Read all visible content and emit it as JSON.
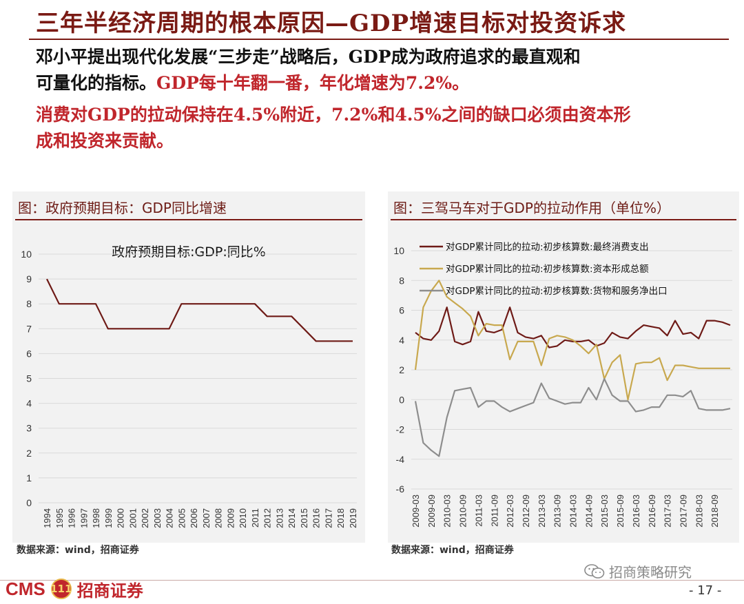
{
  "title": "三年半经济周期的根本原因—GDP增速目标对投资诉求",
  "intro": {
    "line1": "邓小平提出现代化发展“三步走”战略后，GDP成为政府追求的最直观和",
    "line2_black": "可量化的指标。",
    "line2_red": "GDP每十年翻一番，年化增速为7.2%。",
    "line3": "消费对GDP的拉动保持在4.5%附近，7.2%和4.5%之间的缺口必须由资本形",
    "line4": "成和投资来贡献。"
  },
  "left_panel": {
    "title": "图：政府预期目标：GDP同比增速",
    "source": "数据来源：wind，招商证券"
  },
  "right_panel": {
    "title": "图：三驾马车对于GDP的拉动作用（单位%）",
    "source": "数据来源：wind，招商证券"
  },
  "footer": {
    "logo_text": "CMS",
    "logo_badge": "111",
    "logo_name": "招商证券",
    "watermark": "招商策略研究",
    "page": "- 17 -"
  },
  "chart_data": [
    {
      "type": "line",
      "title": "政府预期目标:GDP:同比%",
      "ylim": [
        0,
        10
      ],
      "yticks": [
        0,
        1,
        2,
        3,
        4,
        5,
        6,
        7,
        8,
        9,
        10
      ],
      "x": [
        "1994",
        "1995",
        "1996",
        "1997",
        "1998",
        "1999",
        "2000",
        "2001",
        "2002",
        "2003",
        "2004",
        "2005",
        "2006",
        "2007",
        "2008",
        "2009",
        "2010",
        "2011",
        "2012",
        "2013",
        "2014",
        "2015",
        "2016",
        "2017",
        "2018",
        "2019"
      ],
      "series": [
        {
          "name": "政府预期目标:GDP:同比%",
          "color": "#6e1a16",
          "values": [
            9,
            8,
            8,
            8,
            8,
            7,
            7,
            7,
            7,
            7,
            7,
            8,
            8,
            8,
            8,
            8,
            8,
            8,
            7.5,
            7.5,
            7.5,
            7,
            6.5,
            6.5,
            6.5,
            6.5
          ]
        }
      ],
      "grid": true,
      "legend": "none"
    },
    {
      "type": "line",
      "ylim": [
        -6,
        10
      ],
      "yticks": [
        -6,
        -4,
        -2,
        0,
        2,
        4,
        6,
        8,
        10
      ],
      "x_tick_labels": [
        "2009-03",
        "2009-09",
        "2010-03",
        "2010-09",
        "2011-03",
        "2011-09",
        "2012-03",
        "2012-09",
        "2013-03",
        "2013-09",
        "2014-03",
        "2014-09",
        "2015-03",
        "2015-09",
        "2016-03",
        "2016-09",
        "2017-03",
        "2017-09",
        "2018-03",
        "2018-09"
      ],
      "series": [
        {
          "name": "对GDP累计同比的拉动:初步核算数:最终消费支出",
          "color": "#6e1a16",
          "values": [
            4.5,
            4.1,
            4.0,
            4.6,
            6.2,
            3.9,
            3.7,
            3.9,
            5.9,
            4.6,
            4.5,
            4.7,
            6.2,
            4.5,
            4.2,
            4.1,
            4.3,
            3.5,
            3.6,
            4.0,
            3.9,
            3.9,
            4.0,
            3.6,
            3.8,
            4.5,
            4.2,
            4.1,
            4.6,
            5.0,
            4.9,
            4.8,
            4.3,
            5.3,
            4.4,
            4.5,
            4.1,
            5.3,
            5.3,
            5.2,
            5.0
          ]
        },
        {
          "name": "对GDP累计同比的拉动:初步核算数:资本形成总额",
          "color": "#c8a84e",
          "values": [
            2.0,
            6.2,
            7.3,
            8.0,
            6.9,
            6.5,
            6.1,
            5.6,
            4.3,
            5.1,
            5.0,
            5.0,
            2.7,
            3.9,
            3.9,
            3.9,
            2.3,
            4.1,
            4.3,
            4.2,
            4.0,
            3.6,
            3.1,
            3.7,
            1.4,
            2.5,
            3.0,
            0.0,
            2.4,
            2.5,
            2.5,
            2.8,
            1.3,
            2.3,
            2.3,
            2.2,
            2.1,
            2.1,
            2.1,
            2.1,
            2.1
          ]
        },
        {
          "name": "对GDP累计同比的拉动:初步核算数:货物和服务净出口",
          "color": "#8d8d8d",
          "values": [
            -0.1,
            -2.9,
            -3.4,
            -3.8,
            -1.2,
            0.6,
            0.7,
            0.8,
            -0.5,
            -0.1,
            -0.1,
            -0.5,
            -0.8,
            -0.6,
            -0.4,
            -0.2,
            1.1,
            0.1,
            -0.1,
            -0.3,
            -0.2,
            -0.2,
            0.8,
            0.0,
            1.4,
            0.3,
            -0.1,
            -0.1,
            -0.8,
            -0.7,
            -0.5,
            -0.5,
            0.3,
            0.3,
            0.2,
            0.6,
            -0.6,
            -0.7,
            -0.7,
            -0.7,
            -0.6
          ]
        }
      ],
      "grid": true,
      "legend": "top-left"
    }
  ]
}
